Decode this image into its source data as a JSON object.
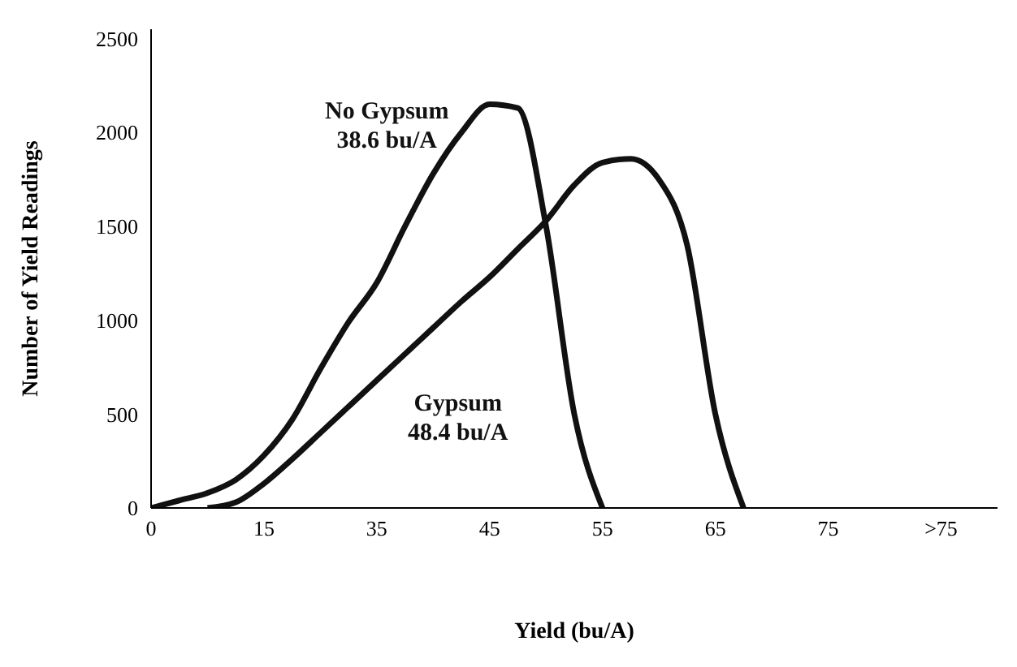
{
  "chart_data": {
    "type": "line",
    "xlabel": "Yield (bu/A)",
    "ylabel": "Number of Yield Readings",
    "categories": [
      "0",
      null,
      null,
      null,
      "15",
      null,
      null,
      null,
      "35",
      null,
      null,
      null,
      "45",
      null,
      null,
      null,
      "55",
      null,
      null,
      null,
      "65",
      null,
      null,
      null,
      "75",
      null,
      null,
      null,
      ">75",
      null,
      null
    ],
    "series": [
      {
        "name": "No Gypsum",
        "color": "#111111",
        "values": [
          0,
          40,
          80,
          150,
          280,
          470,
          740,
          990,
          1200,
          1500,
          1780,
          2000,
          2150,
          2130,
          1500,
          500,
          0,
          null,
          null,
          null,
          null,
          null,
          null,
          null,
          null,
          null,
          null,
          null,
          null,
          null,
          null
        ]
      },
      {
        "name": "Gypsum",
        "color": "#111111",
        "values": [
          null,
          null,
          0,
          30,
          130,
          260,
          400,
          540,
          680,
          820,
          960,
          1100,
          1230,
          1380,
          1530,
          1720,
          1840,
          1860,
          1750,
          1400,
          500,
          0,
          null,
          null,
          null,
          null,
          null,
          null,
          null,
          null,
          null
        ]
      }
    ],
    "annotations": [
      "38.6 bu/A",
      "48.4 bu/A"
    ],
    "ylim": [
      0,
      2550
    ],
    "yticks": [
      0,
      500,
      1000,
      1500,
      2000,
      2500
    ],
    "grid": false,
    "legend": false,
    "marker": "none",
    "line_style": "solid"
  }
}
